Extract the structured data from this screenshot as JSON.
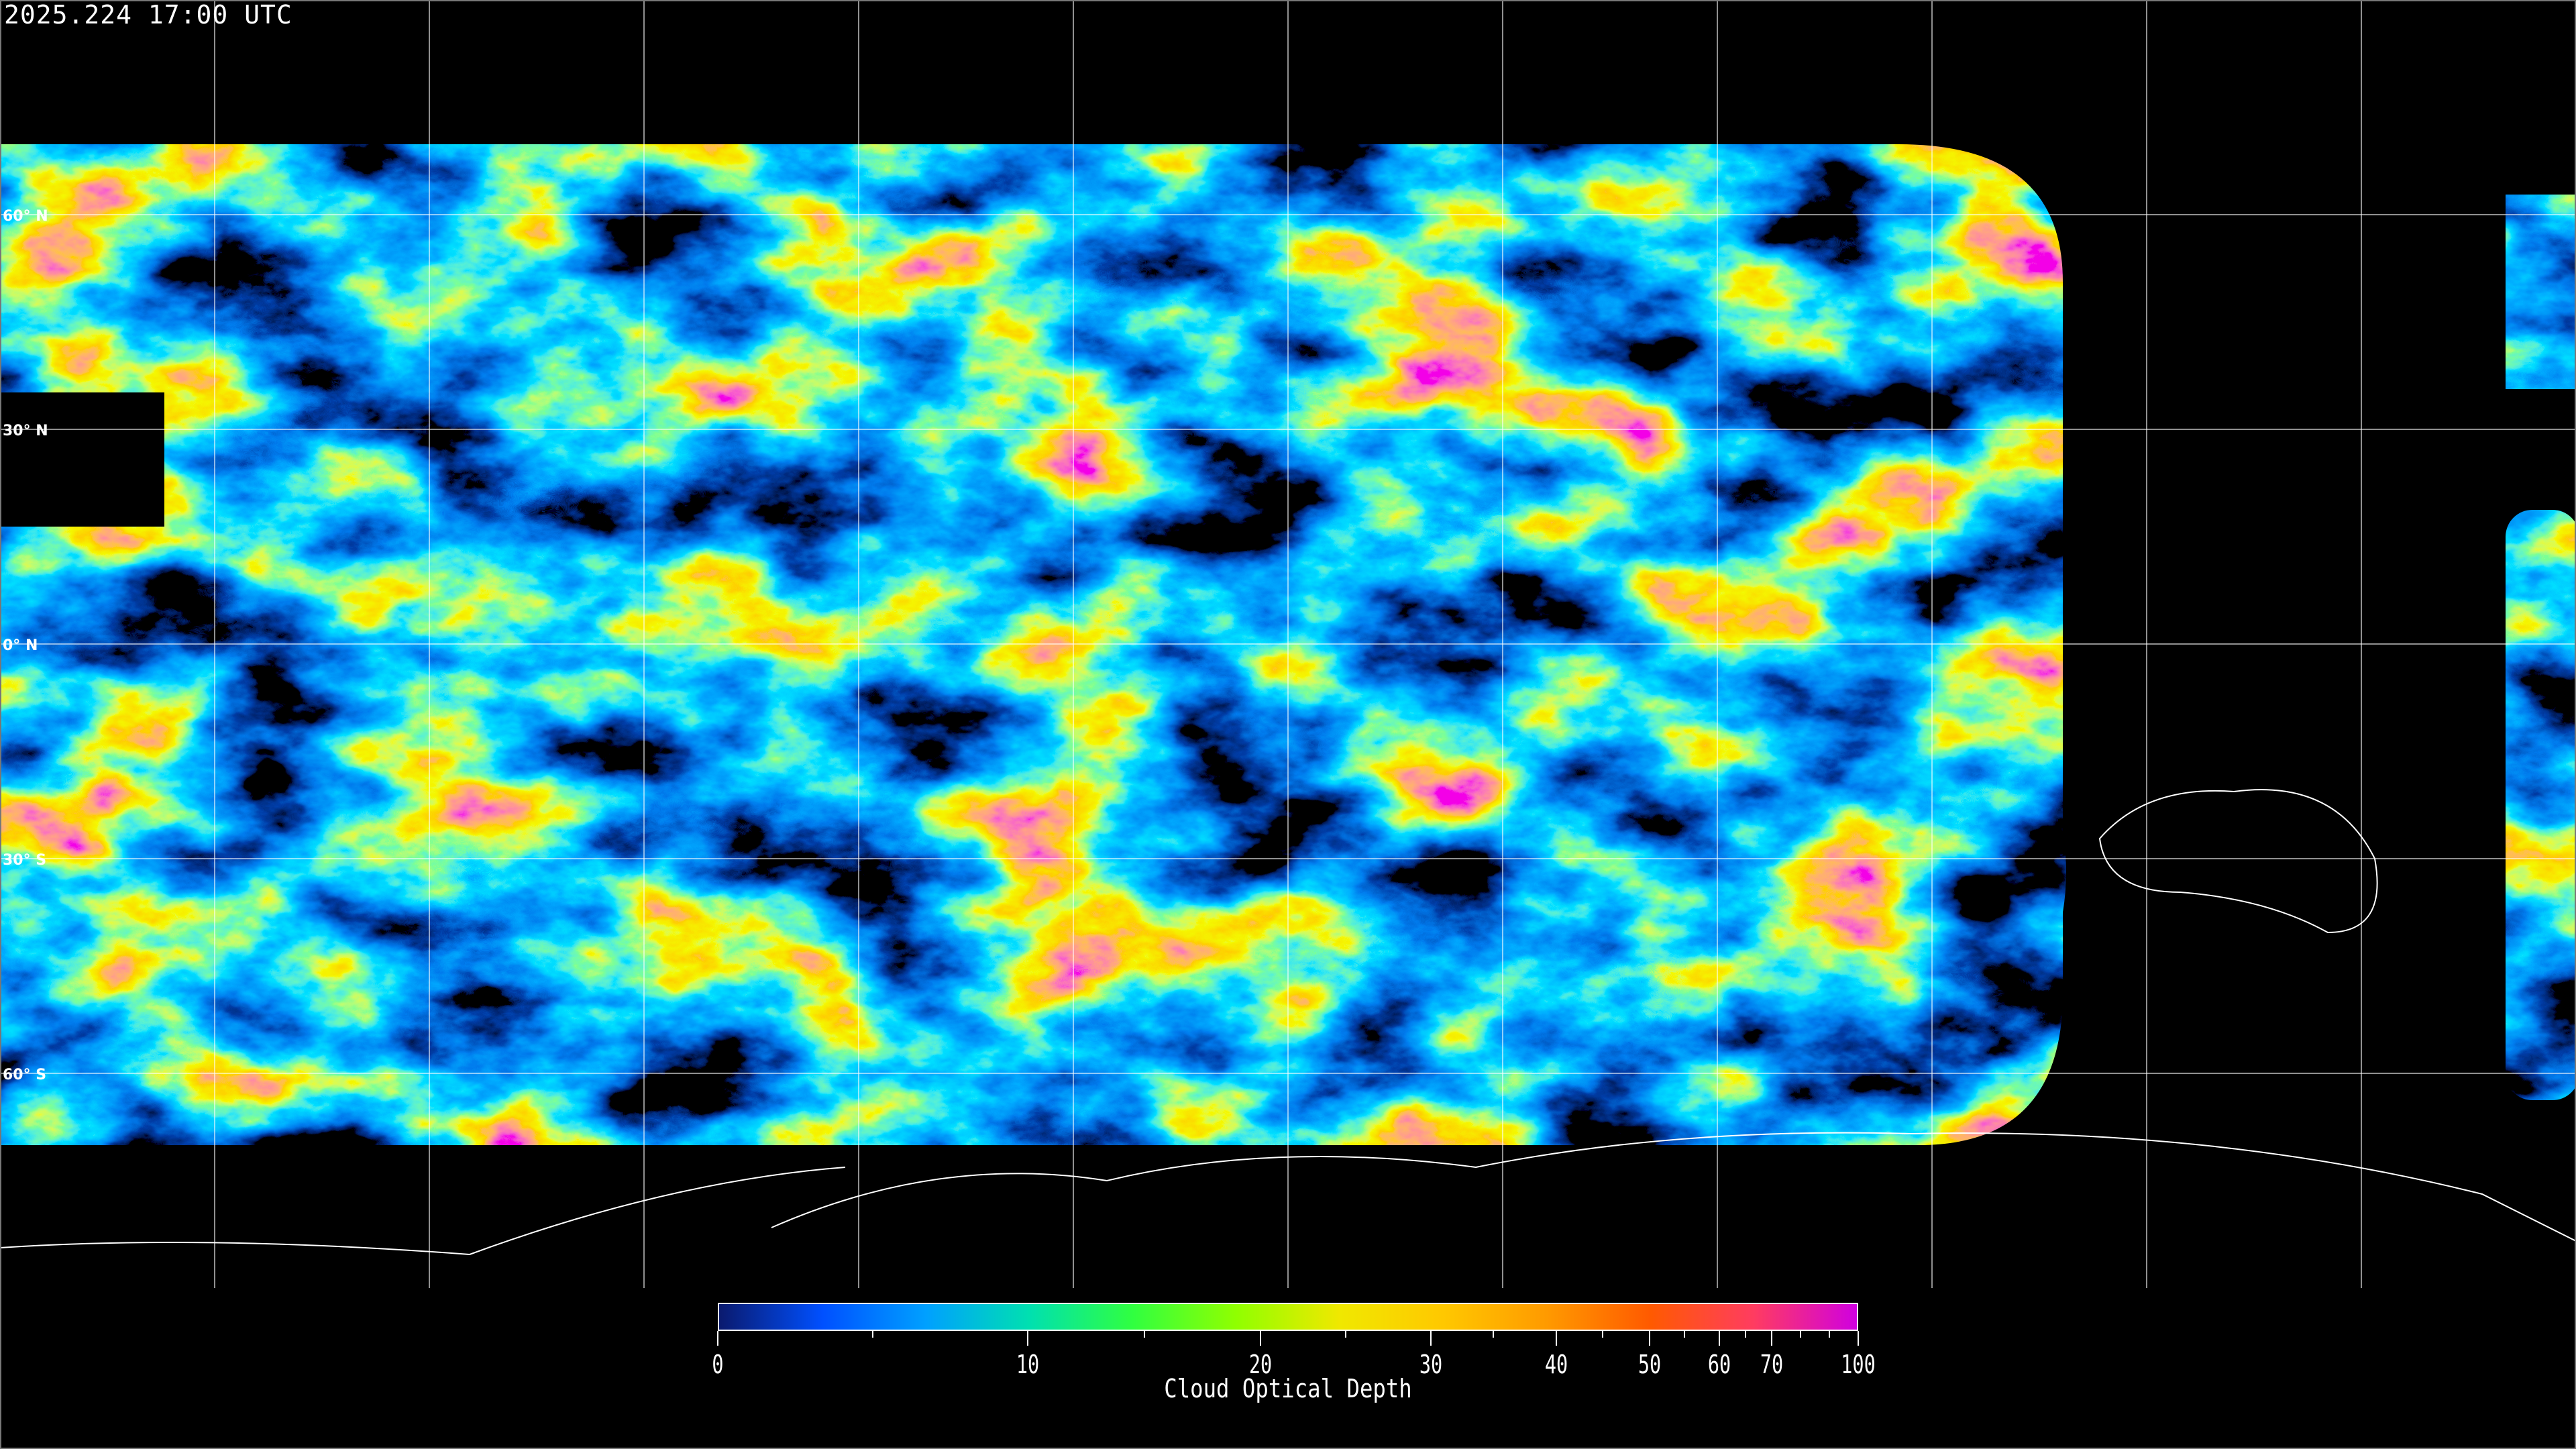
{
  "header": {
    "timestamp": "2025.224 17:00 UTC"
  },
  "map": {
    "projection": "equirectangular",
    "gridlines": true,
    "latitude_labels": [
      "60° N",
      "30° N",
      "0° N",
      "30° S",
      "60° S"
    ],
    "coastlines_color": "#ffffff",
    "no_data_color": "#000000"
  },
  "colorbar": {
    "title": "Cloud Optical Depth",
    "range": [
      0,
      100
    ],
    "tick_labels": [
      "0",
      "10",
      "20",
      "30",
      "40",
      "50",
      "60",
      "70",
      "100"
    ],
    "minor_ticks": [
      5,
      15,
      25,
      35,
      45,
      55,
      65,
      80,
      90
    ],
    "colormap": [
      "#0a1a6e",
      "#0050ff",
      "#00a0ff",
      "#00e0b0",
      "#30ff40",
      "#90ff00",
      "#f0e800",
      "#ffc800",
      "#ff9a00",
      "#ff5a00",
      "#ff3c60",
      "#d000e0"
    ]
  }
}
